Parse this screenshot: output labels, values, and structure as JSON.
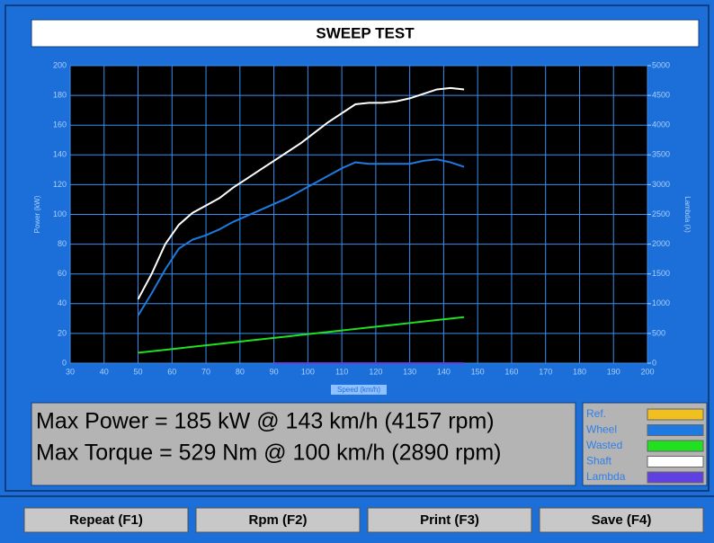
{
  "header": {
    "title": "SWEEP TEST"
  },
  "chart_data": {
    "type": "line",
    "xlabel": "Speed (km/h)",
    "ylabel": "Power (kW)",
    "y2label": "Lambda (λ)",
    "x": [
      50,
      54,
      58,
      62,
      66,
      70,
      74,
      78,
      82,
      86,
      90,
      94,
      98,
      102,
      106,
      110,
      114,
      118,
      122,
      126,
      130,
      134,
      138,
      142,
      146
    ],
    "series": [
      {
        "name": "Ref.",
        "color": "#f0c020",
        "values": [
          null,
          null,
          null,
          null,
          null,
          null,
          null,
          null,
          null,
          null,
          null,
          null,
          null,
          null,
          null,
          null,
          null,
          null,
          null,
          null,
          null,
          null,
          null,
          null,
          null
        ]
      },
      {
        "name": "Wheel",
        "color": "#1e7ae0",
        "values": [
          32,
          47,
          63,
          77,
          83,
          86,
          90,
          95,
          99,
          103,
          107,
          111,
          116,
          121,
          126,
          131,
          135,
          134,
          134,
          134,
          134,
          136,
          137,
          135,
          132
        ]
      },
      {
        "name": "Wasted",
        "color": "#20e020",
        "values": [
          7,
          8,
          9,
          10,
          11,
          12,
          13,
          14,
          15,
          16,
          17,
          18,
          19,
          20,
          21,
          22,
          23,
          24,
          25,
          26,
          27,
          28,
          29,
          30,
          31
        ]
      },
      {
        "name": "Shaft",
        "color": "#ffffff",
        "values": [
          43,
          60,
          80,
          93,
          101,
          106,
          111,
          118,
          124,
          130,
          136,
          142,
          148,
          155,
          162,
          168,
          174,
          175,
          175,
          176,
          178,
          181,
          184,
          185,
          184
        ]
      },
      {
        "name": "Lambda",
        "color": "#6040e0",
        "axis": "y2",
        "values": [
          null,
          null,
          null,
          null,
          null,
          null,
          null,
          null,
          null,
          null,
          0,
          0,
          0,
          0,
          0,
          0,
          0,
          0,
          0,
          0,
          0,
          0,
          0,
          0,
          0
        ]
      }
    ],
    "xlim": [
      30,
      200
    ],
    "xticks": [
      30,
      40,
      50,
      60,
      70,
      80,
      90,
      100,
      110,
      120,
      130,
      140,
      150,
      160,
      170,
      180,
      190,
      200
    ],
    "ylim": [
      0,
      200
    ],
    "yticks": [
      0,
      20,
      40,
      60,
      80,
      100,
      120,
      140,
      160,
      180,
      200
    ],
    "y2lim": [
      0,
      5000
    ],
    "y2ticks": [
      0,
      500,
      1000,
      1500,
      2000,
      2500,
      3000,
      3500,
      4000,
      4500,
      5000
    ],
    "grid": true
  },
  "summary": [
    "Max Power = 185 kW @ 143 km/h (4157 rpm)",
    "Max Torque = 529 Nm @ 100 km/h (2890 rpm)"
  ],
  "buttons": [
    "Repeat (F1)",
    "Rpm (F2)",
    "Print (F3)",
    "Save (F4)"
  ]
}
